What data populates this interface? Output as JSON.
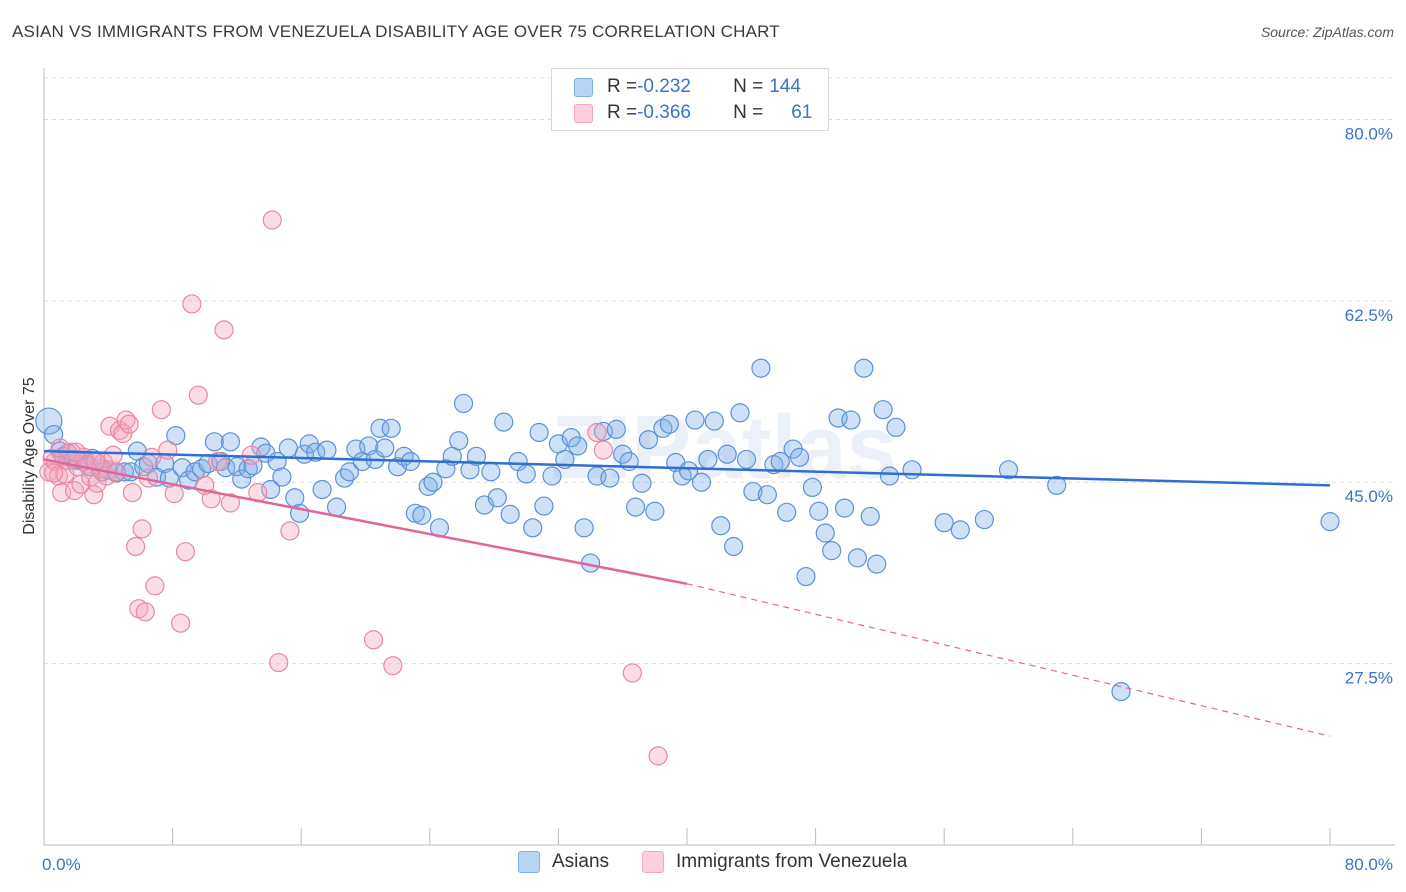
{
  "title": "ASIAN VS IMMIGRANTS FROM VENEZUELA DISABILITY AGE OVER 75 CORRELATION CHART",
  "source": "Source: ZipAtlas.com",
  "watermark": "ZIPatlas",
  "legend": {
    "rows": [
      {
        "r_label": "R = ",
        "r_value": "-0.232",
        "n_label": "N = ",
        "n_value": "144",
        "color": "#7fb0e8"
      },
      {
        "r_label": "R = ",
        "r_value": "-0.366",
        "n_label": "N = ",
        "n_value": "61",
        "color": "#f4a6bd"
      }
    ]
  },
  "bottom_legend": [
    "Asians",
    "Immigrants from Venezuela"
  ],
  "chart_data": {
    "type": "scatter",
    "title": "ASIAN VS IMMIGRANTS FROM VENEZUELA DISABILITY AGE OVER 75 CORRELATION CHART",
    "xlabel": "",
    "ylabel": "Disability Age Over 75",
    "xlim": [
      0,
      80
    ],
    "ylim": [
      10,
      84
    ],
    "x_tick_labels": [
      "0.0%",
      "80.0%"
    ],
    "y_ticks": [
      27.5,
      45.0,
      62.5,
      80.0
    ],
    "y_tick_labels": [
      "27.5%",
      "45.0%",
      "62.5%",
      "80.0%"
    ],
    "grid": true,
    "series": [
      {
        "name": "Asians",
        "color": "#7fb0e8",
        "stroke": "#5b92d6",
        "trend": {
          "x0": 0,
          "y0": 48.0,
          "x1": 80,
          "y1": 44.7,
          "color": "#2f6fcf"
        },
        "points": [
          [
            0.3,
            50.9
          ],
          [
            0.6,
            49.6
          ],
          [
            1.0,
            48.0
          ],
          [
            1.2,
            47.5
          ],
          [
            1.5,
            47.8
          ],
          [
            1.8,
            47.2
          ],
          [
            2.1,
            47.1
          ],
          [
            2.5,
            47.0
          ],
          [
            2.8,
            46.5
          ],
          [
            3.0,
            47.3
          ],
          [
            3.6,
            46.0
          ],
          [
            4.0,
            46.2
          ],
          [
            4.5,
            45.9
          ],
          [
            5.0,
            46.0
          ],
          [
            5.4,
            46.0
          ],
          [
            5.8,
            48.0
          ],
          [
            6.2,
            46.5
          ],
          [
            6.5,
            46.8
          ],
          [
            7.0,
            45.5
          ],
          [
            7.5,
            46.8
          ],
          [
            7.8,
            45.4
          ],
          [
            8.2,
            49.5
          ],
          [
            8.6,
            46.4
          ],
          [
            9.0,
            45.2
          ],
          [
            9.4,
            46.0
          ],
          [
            9.8,
            46.3
          ],
          [
            10.2,
            46.8
          ],
          [
            10.6,
            48.9
          ],
          [
            11.0,
            47.0
          ],
          [
            11.3,
            46.4
          ],
          [
            11.6,
            48.9
          ],
          [
            12.0,
            46.5
          ],
          [
            12.3,
            45.3
          ],
          [
            12.7,
            46.3
          ],
          [
            13.0,
            46.6
          ],
          [
            13.5,
            48.4
          ],
          [
            13.8,
            47.8
          ],
          [
            14.1,
            44.3
          ],
          [
            14.5,
            47.0
          ],
          [
            14.8,
            45.5
          ],
          [
            15.2,
            48.3
          ],
          [
            15.6,
            43.5
          ],
          [
            15.9,
            42.0
          ],
          [
            16.2,
            47.7
          ],
          [
            16.5,
            48.7
          ],
          [
            16.9,
            47.9
          ],
          [
            17.3,
            44.3
          ],
          [
            17.6,
            48.1
          ],
          [
            18.2,
            42.6
          ],
          [
            18.7,
            45.4
          ],
          [
            19.0,
            46.0
          ],
          [
            19.4,
            48.2
          ],
          [
            19.8,
            47.0
          ],
          [
            20.2,
            48.5
          ],
          [
            20.6,
            47.2
          ],
          [
            20.9,
            50.2
          ],
          [
            21.2,
            48.3
          ],
          [
            21.6,
            50.2
          ],
          [
            22.0,
            46.5
          ],
          [
            22.4,
            47.5
          ],
          [
            22.8,
            47.0
          ],
          [
            23.1,
            42.0
          ],
          [
            23.5,
            41.8
          ],
          [
            23.9,
            44.6
          ],
          [
            24.2,
            45.0
          ],
          [
            24.6,
            40.6
          ],
          [
            25.0,
            46.3
          ],
          [
            25.4,
            47.5
          ],
          [
            25.8,
            49.0
          ],
          [
            26.1,
            52.6
          ],
          [
            26.5,
            46.2
          ],
          [
            26.9,
            47.5
          ],
          [
            27.4,
            42.8
          ],
          [
            27.8,
            46.0
          ],
          [
            28.2,
            43.5
          ],
          [
            28.6,
            50.8
          ],
          [
            29.0,
            41.9
          ],
          [
            29.5,
            47.0
          ],
          [
            30.0,
            45.8
          ],
          [
            30.4,
            40.6
          ],
          [
            30.8,
            49.8
          ],
          [
            31.1,
            42.7
          ],
          [
            31.6,
            45.6
          ],
          [
            32.0,
            48.7
          ],
          [
            32.4,
            47.2
          ],
          [
            32.8,
            49.3
          ],
          [
            33.2,
            48.5
          ],
          [
            33.6,
            40.6
          ],
          [
            34.0,
            37.2
          ],
          [
            34.4,
            45.6
          ],
          [
            34.8,
            49.9
          ],
          [
            35.2,
            45.4
          ],
          [
            35.6,
            50.1
          ],
          [
            36.0,
            47.7
          ],
          [
            36.4,
            47.0
          ],
          [
            36.8,
            42.6
          ],
          [
            37.2,
            44.9
          ],
          [
            37.6,
            49.1
          ],
          [
            38.0,
            42.2
          ],
          [
            38.5,
            50.2
          ],
          [
            38.9,
            50.6
          ],
          [
            39.3,
            46.9
          ],
          [
            39.7,
            45.6
          ],
          [
            40.1,
            46.1
          ],
          [
            40.5,
            51.0
          ],
          [
            40.9,
            45.0
          ],
          [
            41.3,
            47.2
          ],
          [
            41.7,
            50.9
          ],
          [
            42.1,
            40.8
          ],
          [
            42.5,
            47.7
          ],
          [
            42.9,
            38.8
          ],
          [
            43.3,
            51.7
          ],
          [
            43.7,
            47.2
          ],
          [
            44.1,
            44.1
          ],
          [
            44.6,
            56.0
          ],
          [
            45.0,
            43.8
          ],
          [
            45.4,
            46.7
          ],
          [
            45.8,
            47.0
          ],
          [
            46.2,
            42.1
          ],
          [
            46.6,
            48.2
          ],
          [
            47.0,
            47.4
          ],
          [
            47.4,
            35.9
          ],
          [
            47.8,
            44.5
          ],
          [
            48.2,
            42.2
          ],
          [
            48.6,
            40.1
          ],
          [
            49.0,
            38.4
          ],
          [
            49.4,
            51.2
          ],
          [
            49.8,
            42.5
          ],
          [
            50.2,
            51.0
          ],
          [
            50.6,
            37.7
          ],
          [
            51.0,
            56.0
          ],
          [
            51.4,
            41.7
          ],
          [
            51.8,
            37.1
          ],
          [
            52.2,
            52.0
          ],
          [
            52.6,
            45.6
          ],
          [
            53.0,
            50.3
          ],
          [
            54.0,
            46.2
          ],
          [
            56.0,
            41.1
          ],
          [
            57.0,
            40.4
          ],
          [
            58.5,
            41.4
          ],
          [
            60.0,
            46.2
          ],
          [
            63.0,
            44.7
          ],
          [
            67.0,
            24.8
          ],
          [
            80.0,
            41.2
          ]
        ]
      },
      {
        "name": "Immigrants from Venezuela",
        "color": "#f4a6bd",
        "stroke": "#e887a6",
        "trend": {
          "x0": 0,
          "y0": 47.2,
          "x1": 40,
          "y1": 35.2,
          "x2": 80,
          "y2": 20.5,
          "color": "#e0669a"
        },
        "points": [
          [
            0.3,
            46.0
          ],
          [
            0.5,
            47.3
          ],
          [
            0.7,
            47.0
          ],
          [
            0.9,
            45.6
          ],
          [
            1.1,
            44.0
          ],
          [
            1.3,
            45.8
          ],
          [
            1.5,
            47.1
          ],
          [
            1.7,
            47.9
          ],
          [
            1.9,
            44.2
          ],
          [
            2.1,
            46.5
          ],
          [
            2.3,
            44.8
          ],
          [
            2.5,
            47.4
          ],
          [
            2.7,
            46.7
          ],
          [
            2.9,
            45.5
          ],
          [
            3.1,
            43.8
          ],
          [
            3.3,
            44.9
          ],
          [
            3.5,
            46.3
          ],
          [
            3.7,
            46.9
          ],
          [
            3.9,
            45.6
          ],
          [
            4.1,
            50.4
          ],
          [
            4.3,
            47.6
          ],
          [
            4.5,
            46.0
          ],
          [
            4.7,
            50.0
          ],
          [
            4.9,
            49.7
          ],
          [
            5.1,
            51.0
          ],
          [
            5.3,
            50.6
          ],
          [
            5.5,
            44.0
          ],
          [
            5.7,
            38.8
          ],
          [
            5.9,
            32.8
          ],
          [
            6.1,
            40.5
          ],
          [
            6.3,
            32.5
          ],
          [
            6.5,
            45.4
          ],
          [
            6.7,
            47.4
          ],
          [
            6.9,
            35.0
          ],
          [
            7.3,
            52.0
          ],
          [
            7.7,
            48.1
          ],
          [
            8.1,
            43.9
          ],
          [
            8.5,
            31.4
          ],
          [
            8.8,
            38.3
          ],
          [
            9.2,
            62.2
          ],
          [
            9.6,
            53.4
          ],
          [
            10.0,
            44.7
          ],
          [
            10.4,
            43.4
          ],
          [
            10.8,
            47.0
          ],
          [
            11.2,
            59.7
          ],
          [
            11.6,
            43.0
          ],
          [
            12.9,
            47.6
          ],
          [
            13.3,
            44.0
          ],
          [
            14.2,
            70.3
          ],
          [
            14.6,
            27.6
          ],
          [
            15.3,
            40.3
          ],
          [
            20.5,
            29.8
          ],
          [
            21.7,
            27.3
          ],
          [
            34.4,
            49.8
          ],
          [
            34.8,
            48.1
          ],
          [
            36.6,
            26.6
          ],
          [
            38.2,
            18.6
          ],
          [
            3.2,
            47.0
          ],
          [
            2.0,
            47.9
          ],
          [
            1.0,
            48.3
          ],
          [
            0.6,
            45.9
          ]
        ]
      }
    ]
  }
}
